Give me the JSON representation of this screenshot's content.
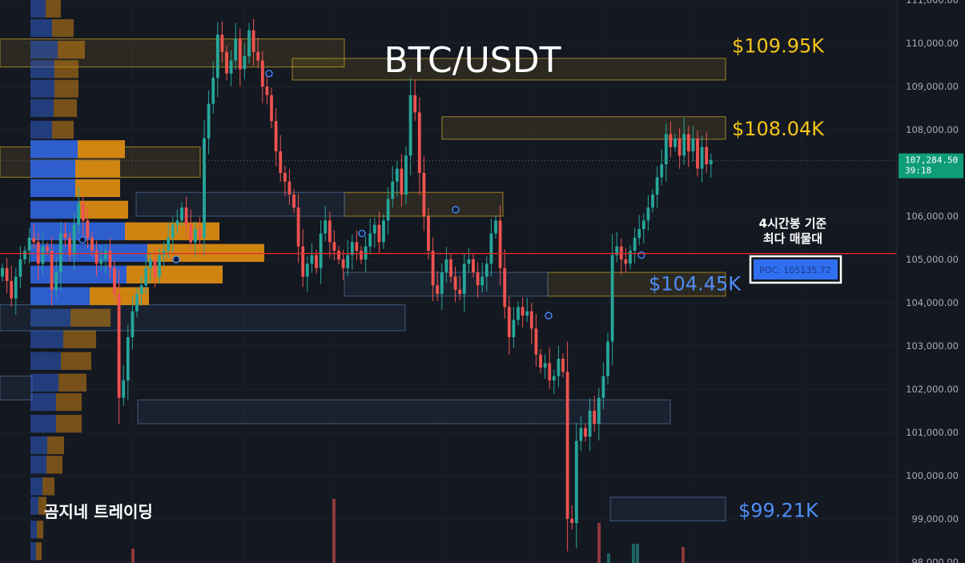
{
  "chart_data": {
    "type": "candlestick",
    "title": "BTC/USDT",
    "y_ticks": [
      98000,
      99000,
      100000,
      101000,
      102000,
      103000,
      104000,
      105000,
      106000,
      107000,
      108000,
      109000,
      110000,
      111000
    ],
    "y_tick_labels": [
      "98,000.00",
      "99,000.00",
      "100,000.00",
      "101,000.00",
      "102,000.00",
      "103,000.00",
      "104,000.00",
      "105,000.00",
      "106,000.00",
      "107,000.00",
      "108,000.00",
      "109,000.00",
      "110,000.00",
      "111,000.00"
    ],
    "ylim": [
      97950,
      111050
    ],
    "candles_close": [
      104800,
      104500,
      104100,
      104600,
      105000,
      105200,
      105500,
      105400,
      104900,
      105300,
      105200,
      104300,
      104700,
      105600,
      105500,
      105100,
      105800,
      106300,
      105900,
      105500,
      105200,
      104900,
      105000,
      105200,
      104800,
      104200,
      101800,
      102200,
      103200,
      103800,
      104200,
      104400,
      104800,
      105000,
      104600,
      105100,
      105200,
      105500,
      105800,
      105900,
      106200,
      105800,
      105400,
      105700,
      105500,
      107800,
      108600,
      109200,
      110200,
      109800,
      109300,
      109600,
      110100,
      109400,
      109700,
      110300,
      109800,
      109600,
      109000,
      108800,
      108200,
      107500,
      107000,
      106800,
      106500,
      106200,
      105300,
      104600,
      104900,
      105100,
      104800,
      105600,
      105900,
      105400,
      105200,
      105000,
      104800,
      105100,
      105400,
      105200,
      105000,
      105300,
      105600,
      105800,
      105400,
      105900,
      106400,
      106800,
      107100,
      106500,
      107400,
      108800,
      108400,
      107000,
      106000,
      105200,
      104400,
      104200,
      104700,
      105000,
      104600,
      104300,
      104200,
      104900,
      105000,
      104700,
      104400,
      104600,
      104900,
      105600,
      105900,
      104800,
      103900,
      103200,
      103600,
      103900,
      103700,
      103800,
      103400,
      102800,
      102500,
      102600,
      102200,
      102300,
      102700,
      102400,
      99000,
      98900,
      100800,
      101100,
      100900,
      101500,
      101200,
      101800,
      102300,
      103100,
      105100,
      105300,
      105000,
      104900,
      105200,
      105500,
      105700,
      105900,
      106200,
      106500,
      106900,
      107200,
      107900,
      107600,
      107800,
      107400,
      107900,
      107500,
      107800,
      107100,
      107600,
      107200,
      107300
    ],
    "current_price": "107,284.50",
    "countdown": "39:18",
    "poc_label": "POC: 105135.72",
    "poc_value": 105135.72,
    "levels": [
      {
        "label": "$109.95K",
        "value": 109950,
        "color": "#f5c518"
      },
      {
        "label": "$108.04K",
        "value": 108040,
        "color": "#f5c518"
      },
      {
        "label": "$104.45K",
        "value": 104450,
        "color": "#4f8ef7"
      },
      {
        "label": "$99.21K",
        "value": 99210,
        "color": "#4f8ef7"
      }
    ],
    "zones": [
      {
        "kind": "supply",
        "y1": 110100,
        "y2": 109450,
        "x1": 0,
        "x2": 430
      },
      {
        "kind": "supply",
        "y1": 109650,
        "y2": 109150,
        "x1": 365,
        "x2": 906
      },
      {
        "kind": "supply",
        "y1": 108300,
        "y2": 107780,
        "x1": 552,
        "x2": 906
      },
      {
        "kind": "supply",
        "y1": 107600,
        "y2": 106900,
        "x1": 0,
        "x2": 250
      },
      {
        "kind": "supply",
        "y1": 106550,
        "y2": 106000,
        "x1": 430,
        "x2": 628
      },
      {
        "kind": "supply",
        "y1": 104700,
        "y2": 104150,
        "x1": 684,
        "x2": 906
      },
      {
        "kind": "demand",
        "y1": 106550,
        "y2": 106000,
        "x1": 170,
        "x2": 430
      },
      {
        "kind": "demand",
        "y1": 104700,
        "y2": 104150,
        "x1": 430,
        "x2": 684
      },
      {
        "kind": "demand",
        "y1": 103950,
        "y2": 103350,
        "x1": 0,
        "x2": 506
      },
      {
        "kind": "demand",
        "y1": 102300,
        "y2": 101750,
        "x1": 0,
        "x2": 40
      },
      {
        "kind": "demand",
        "y1": 101750,
        "y2": 101200,
        "x1": 172,
        "x2": 837
      },
      {
        "kind": "demand",
        "y1": 99500,
        "y2": 98950,
        "x1": 762,
        "x2": 906
      }
    ],
    "volume_profile": [
      {
        "price": 110800,
        "vol": 38
      },
      {
        "price": 110350,
        "vol": 54
      },
      {
        "price": 109850,
        "vol": 68
      },
      {
        "price": 109400,
        "vol": 60
      },
      {
        "price": 108950,
        "vol": 60
      },
      {
        "price": 108500,
        "vol": 58
      },
      {
        "price": 108000,
        "vol": 54
      },
      {
        "price": 107550,
        "vol": 118
      },
      {
        "price": 107100,
        "vol": 112
      },
      {
        "price": 106650,
        "vol": 112
      },
      {
        "price": 106150,
        "vol": 122
      },
      {
        "price": 105650,
        "vol": 236
      },
      {
        "price": 105150,
        "vol": 292
      },
      {
        "price": 104650,
        "vol": 240
      },
      {
        "price": 104150,
        "vol": 148
      },
      {
        "price": 103650,
        "vol": 100
      },
      {
        "price": 103150,
        "vol": 82
      },
      {
        "price": 102650,
        "vol": 76
      },
      {
        "price": 102150,
        "vol": 70
      },
      {
        "price": 101700,
        "vol": 64
      },
      {
        "price": 101200,
        "vol": 64
      },
      {
        "price": 100700,
        "vol": 42
      },
      {
        "price": 100250,
        "vol": 40
      },
      {
        "price": 99750,
        "vol": 30
      },
      {
        "price": 99300,
        "vol": 20
      },
      {
        "price": 98750,
        "vol": 16
      },
      {
        "price": 98250,
        "vol": 14
      }
    ]
  },
  "annotations": {
    "note_line1": "4시간봉 기준",
    "note_line2": "최다 매물대",
    "watermark": "곰지네 트레이딩"
  },
  "colors": {
    "background": "#141821",
    "up": "#26a69a",
    "down": "#ef5350",
    "poc_line": "#e22d2d",
    "supply_zone": "#c9a227",
    "demand_zone": "#4a6a92",
    "profile_buy": "#2f62d8",
    "profile_sell": "#d98a12",
    "price_badge": "#0f9d77",
    "poc_box": "#2f6ff0"
  }
}
